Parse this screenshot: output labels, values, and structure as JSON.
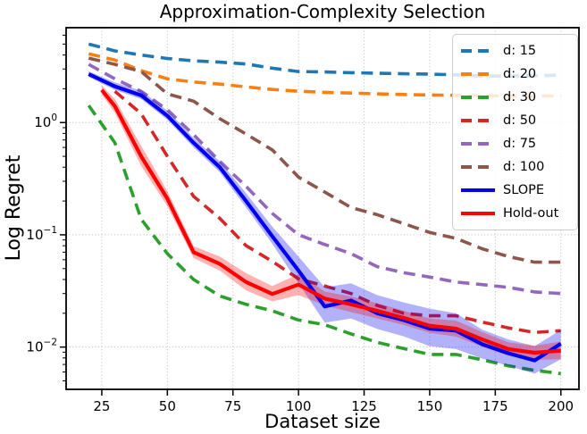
{
  "chart_data": {
    "type": "line",
    "title": "Approximation-Complexity Selection",
    "xlabel": "Dataset size",
    "ylabel": "Log Regret",
    "y_scale": "log",
    "grid": "dotted major gridlines both axes",
    "grid_color": "#bbbbbb",
    "legend_position": "upper right",
    "xlim": [
      11.4,
      206.9
    ],
    "ylim": [
      0.0042,
      7.0
    ],
    "x_ticks": [
      25,
      50,
      75,
      100,
      125,
      150,
      175,
      200
    ],
    "y_ticks": [
      {
        "value": 1,
        "exponent": "0"
      },
      {
        "value": 0.1,
        "exponent": "−1"
      },
      {
        "value": 0.01,
        "exponent": "−2"
      }
    ],
    "series": [
      {
        "name": "d: 15",
        "color": "#1f77b4",
        "dashed": true,
        "x": [
          20,
          30,
          40,
          50,
          60,
          70,
          80,
          90,
          100,
          110,
          120,
          130,
          140,
          150,
          160,
          170,
          180,
          190,
          200
        ],
        "y": [
          5.0,
          4.35,
          4.0,
          3.72,
          3.55,
          3.45,
          3.33,
          3.05,
          2.85,
          2.82,
          2.78,
          2.75,
          2.72,
          2.7,
          2.66,
          2.6,
          2.6,
          2.62,
          2.64
        ]
      },
      {
        "name": "d: 20",
        "color": "#ff7f0e",
        "dashed": true,
        "x": [
          20,
          30,
          40,
          50,
          60,
          70,
          80,
          90,
          100,
          110,
          120,
          130,
          140,
          150,
          160,
          170,
          180,
          190,
          200
        ],
        "y": [
          4.1,
          3.6,
          2.9,
          2.45,
          2.3,
          2.2,
          2.08,
          1.97,
          1.9,
          1.86,
          1.83,
          1.8,
          1.78,
          1.76,
          1.75,
          1.73,
          1.72,
          1.72,
          1.73
        ]
      },
      {
        "name": "d: 30",
        "color": "#2ca02c",
        "dashed": true,
        "x": [
          20,
          30,
          40,
          50,
          60,
          70,
          80,
          90,
          100,
          110,
          120,
          130,
          140,
          150,
          160,
          170,
          180,
          190,
          200
        ],
        "y": [
          1.42,
          0.66,
          0.138,
          0.068,
          0.04,
          0.0285,
          0.024,
          0.021,
          0.0174,
          0.0158,
          0.0131,
          0.011,
          0.0097,
          0.0086,
          0.0086,
          0.0077,
          0.0068,
          0.0062,
          0.0058
        ]
      },
      {
        "name": "d: 50",
        "color": "#d62728",
        "dashed": true,
        "x": [
          30,
          40,
          50,
          60,
          70,
          80,
          90,
          100,
          110,
          120,
          130,
          140,
          150,
          160,
          170,
          180,
          190,
          200
        ],
        "y": [
          1.9,
          1.2,
          0.5,
          0.22,
          0.14,
          0.08,
          0.058,
          0.0405,
          0.035,
          0.03,
          0.0235,
          0.02,
          0.019,
          0.019,
          0.0167,
          0.0148,
          0.0135,
          0.014
        ]
      },
      {
        "name": "d: 75",
        "color": "#9467bd",
        "dashed": true,
        "x": [
          20,
          30,
          40,
          50,
          60,
          70,
          80,
          90,
          100,
          110,
          120,
          130,
          140,
          150,
          160,
          170,
          180,
          190,
          200
        ],
        "y": [
          3.3,
          2.45,
          1.9,
          1.3,
          0.78,
          0.45,
          0.27,
          0.155,
          0.1,
          0.082,
          0.068,
          0.052,
          0.046,
          0.042,
          0.038,
          0.036,
          0.034,
          0.031,
          0.03
        ]
      },
      {
        "name": "d: 100",
        "color": "#8c564b",
        "dashed": true,
        "x": [
          20,
          30,
          40,
          50,
          60,
          70,
          80,
          90,
          100,
          110,
          120,
          130,
          140,
          150,
          160,
          170,
          180,
          190,
          200
        ],
        "y": [
          3.75,
          3.3,
          2.85,
          1.8,
          1.55,
          1.08,
          0.79,
          0.57,
          0.327,
          0.24,
          0.175,
          0.151,
          0.126,
          0.105,
          0.093,
          0.075,
          0.064,
          0.057,
          0.057
        ]
      },
      {
        "name": "SLOPE",
        "color": "#0000ee",
        "dashed": false,
        "band_opacity": 0.3,
        "x": [
          20,
          30,
          40,
          50,
          60,
          70,
          80,
          90,
          100,
          110,
          120,
          130,
          140,
          150,
          160,
          170,
          180,
          190,
          200
        ],
        "y": [
          2.7,
          2.1,
          1.75,
          1.15,
          0.66,
          0.4,
          0.2,
          0.097,
          0.048,
          0.023,
          0.026,
          0.02,
          0.0174,
          0.0146,
          0.014,
          0.0106,
          0.0088,
          0.0076,
          0.0107
        ],
        "band_lo": [
          2.55,
          1.95,
          1.62,
          1.06,
          0.6,
          0.36,
          0.175,
          0.083,
          0.037,
          0.0165,
          0.018,
          0.0145,
          0.0125,
          0.0102,
          0.0096,
          0.0079,
          0.0068,
          0.0058,
          0.0078
        ],
        "band_hi": [
          2.86,
          2.28,
          1.92,
          1.28,
          0.73,
          0.45,
          0.235,
          0.118,
          0.064,
          0.034,
          0.037,
          0.029,
          0.025,
          0.022,
          0.02,
          0.0143,
          0.0117,
          0.0102,
          0.0142
        ]
      },
      {
        "name": "Hold-out",
        "color": "#ff0000",
        "dashed": false,
        "band_opacity": 0.3,
        "x": [
          25,
          30,
          40,
          50,
          60,
          70,
          80,
          90,
          100,
          110,
          120,
          130,
          140,
          150,
          160,
          170,
          180,
          190,
          200
        ],
        "y": [
          1.95,
          1.4,
          0.5,
          0.21,
          0.07,
          0.055,
          0.038,
          0.0297,
          0.036,
          0.027,
          0.024,
          0.021,
          0.0182,
          0.0155,
          0.0146,
          0.0117,
          0.0096,
          0.0089,
          0.0093
        ],
        "band_lo": [
          1.78,
          1.22,
          0.41,
          0.18,
          0.062,
          0.048,
          0.032,
          0.0255,
          0.029,
          0.0235,
          0.0205,
          0.018,
          0.0158,
          0.0134,
          0.0124,
          0.0101,
          0.0084,
          0.0077,
          0.0078
        ],
        "band_hi": [
          2.14,
          1.62,
          0.62,
          0.245,
          0.079,
          0.064,
          0.0455,
          0.035,
          0.0445,
          0.0312,
          0.0282,
          0.0246,
          0.0211,
          0.018,
          0.0172,
          0.0136,
          0.011,
          0.0103,
          0.0112
        ]
      }
    ]
  }
}
